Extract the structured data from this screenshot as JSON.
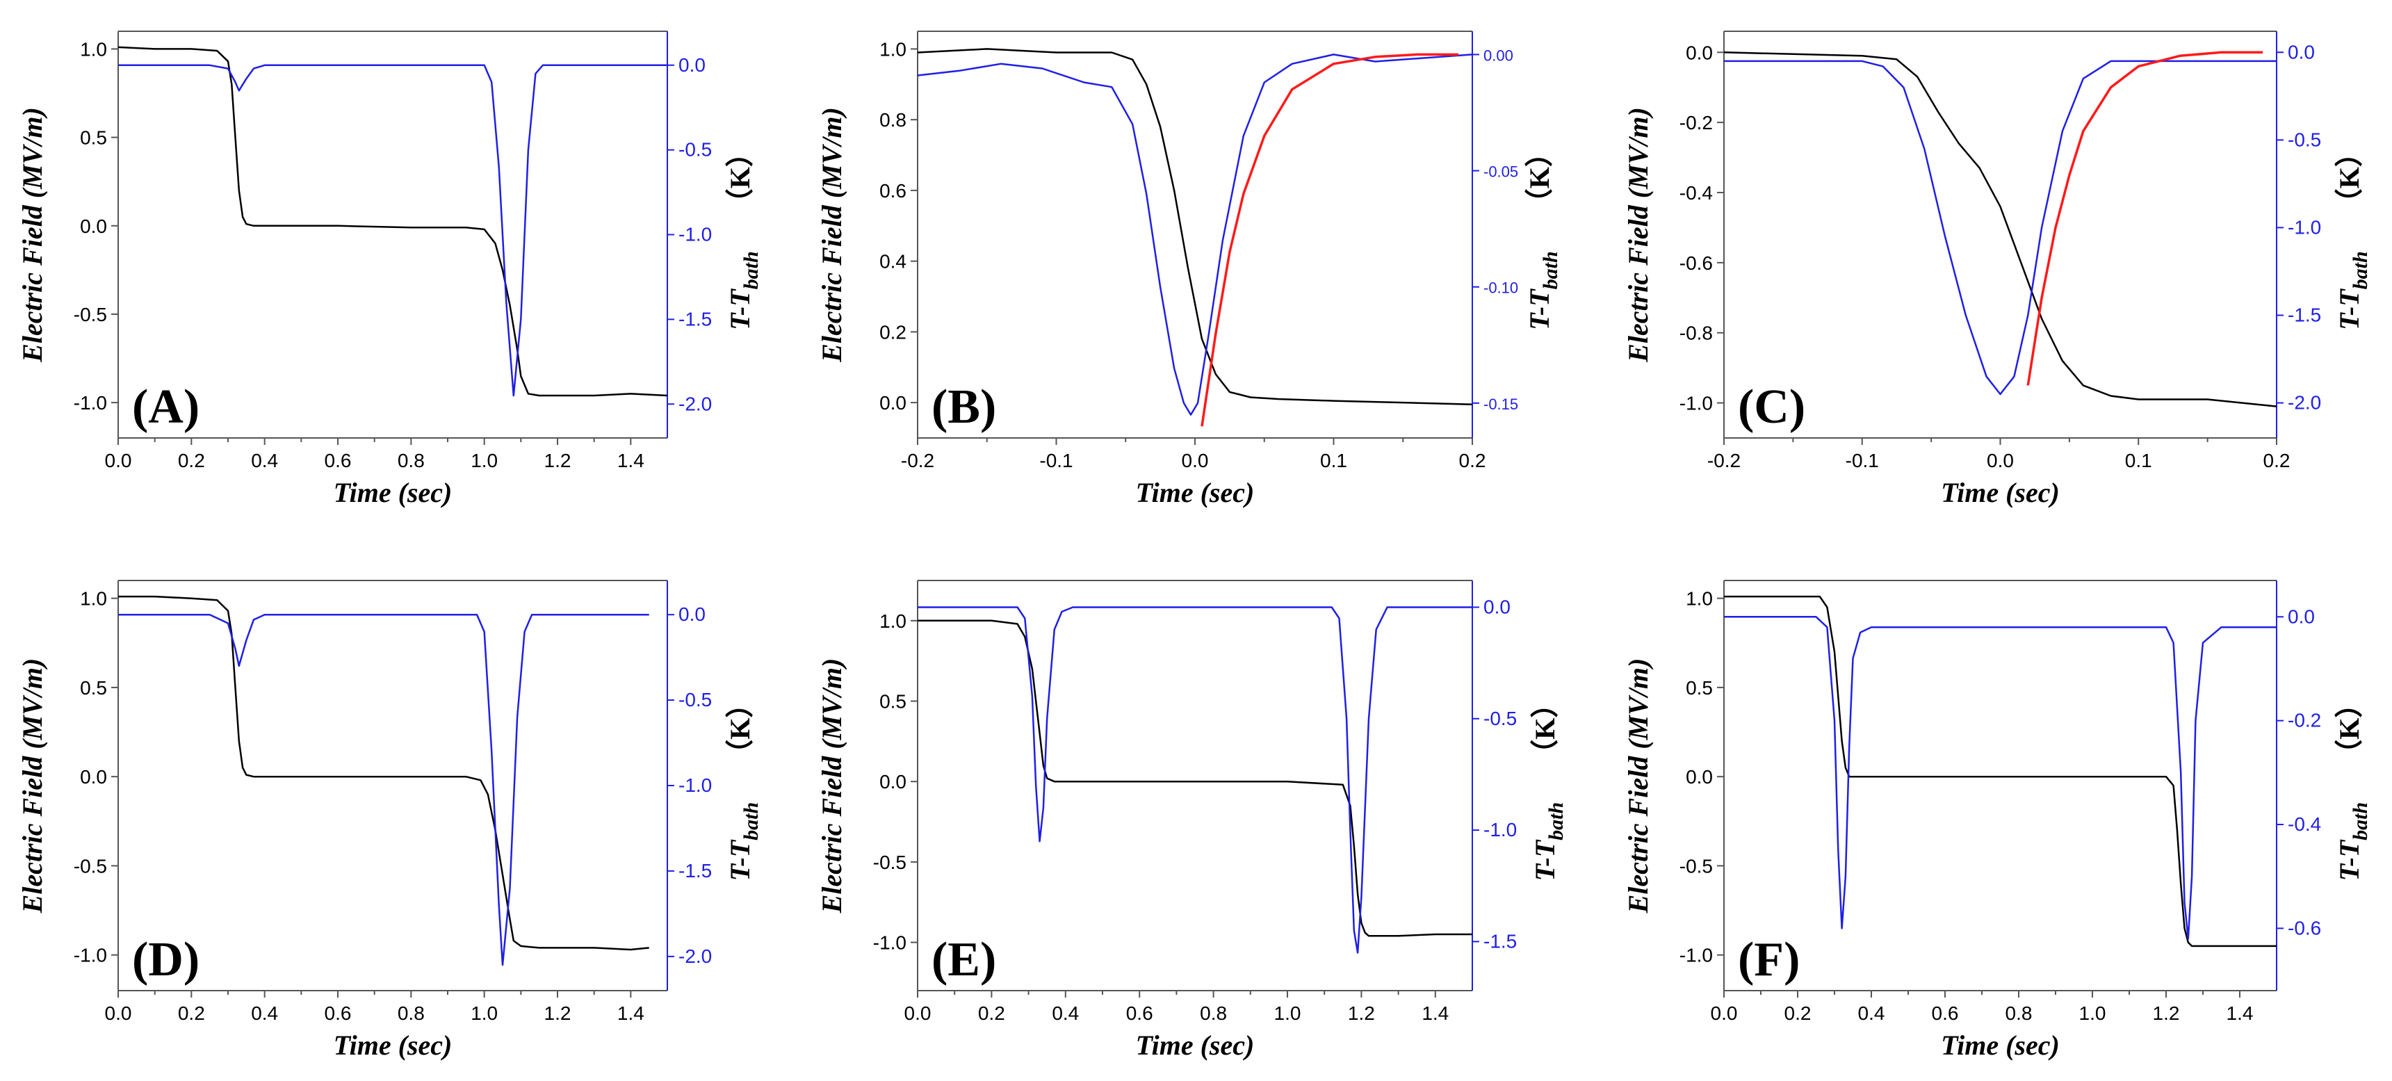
{
  "colors": {
    "field": "#000000",
    "temperature": "#1f1fe6",
    "fit": "#ff1a1a",
    "frame": "#555555",
    "right_axis": "#1f1fe6"
  },
  "chart_data": [
    {
      "type": "line",
      "panel_label": "(A)",
      "xlabel": "Time (sec)",
      "ylabel": "Electric Field (MV/m)",
      "y2label": {
        "main": "T-T",
        "sub": "bath",
        "unit": "（K）"
      },
      "xlim": [
        0,
        1.5
      ],
      "ylim": [
        -1.2,
        1.1
      ],
      "y2lim": [
        -2.2,
        0.2
      ],
      "xticks": [
        0,
        0.2,
        0.4,
        0.6,
        0.8,
        1.0,
        1.2,
        1.4
      ],
      "xtick_labels": [
        "0.0",
        "0.2",
        "0.4",
        "0.6",
        "0.8",
        "1.0",
        "1.2",
        "1.4"
      ],
      "yticks": [
        1.0,
        0.5,
        0.0,
        -0.5,
        -1.0
      ],
      "ytick_labels": [
        "1.0",
        "0.5",
        "0.0",
        "-0.5",
        "-1.0"
      ],
      "y2ticks": [
        0.0,
        -0.5,
        -1.0,
        -1.5,
        -2.0
      ],
      "y2tick_labels": [
        "0.0",
        "-0.5",
        "-1.0",
        "-1.5",
        "-2.0"
      ],
      "series": [
        {
          "name": "Electric Field",
          "axis": "left",
          "color": "#000000",
          "x": [
            0,
            0.1,
            0.2,
            0.27,
            0.3,
            0.31,
            0.32,
            0.33,
            0.34,
            0.35,
            0.37,
            0.4,
            0.6,
            0.8,
            0.95,
            1.0,
            1.03,
            1.05,
            1.07,
            1.09,
            1.1,
            1.12,
            1.15,
            1.2,
            1.3,
            1.4,
            1.5
          ],
          "y": [
            1.01,
            1.0,
            1.0,
            0.99,
            0.93,
            0.8,
            0.5,
            0.2,
            0.05,
            0.01,
            0.0,
            0.0,
            0.0,
            -0.01,
            -0.01,
            -0.02,
            -0.1,
            -0.25,
            -0.45,
            -0.7,
            -0.85,
            -0.95,
            -0.96,
            -0.96,
            -0.96,
            -0.95,
            -0.96
          ]
        },
        {
          "name": "T-Tbath",
          "axis": "right",
          "color": "#1f1fe6",
          "x": [
            0,
            0.25,
            0.3,
            0.32,
            0.33,
            0.35,
            0.37,
            0.4,
            1.0,
            1.02,
            1.04,
            1.06,
            1.08,
            1.1,
            1.12,
            1.14,
            1.16,
            1.5
          ],
          "y": [
            0.0,
            0.0,
            -0.02,
            -0.1,
            -0.15,
            -0.08,
            -0.02,
            0.0,
            0.0,
            -0.1,
            -0.6,
            -1.4,
            -1.95,
            -1.5,
            -0.5,
            -0.05,
            0.0,
            0.0
          ]
        }
      ]
    },
    {
      "type": "line",
      "panel_label": "(B)",
      "xlabel": "Time (sec)",
      "ylabel": "Electric Field (MV/m)",
      "y2label": {
        "main": "T-T",
        "sub": "bath",
        "unit": "（K）"
      },
      "xlim": [
        -0.2,
        0.2
      ],
      "ylim": [
        -0.1,
        1.05
      ],
      "y2lim": [
        -0.165,
        0.01
      ],
      "xticks": [
        -0.2,
        -0.1,
        0.0,
        0.1,
        0.2
      ],
      "xtick_labels": [
        "-0.2",
        "-0.1",
        "0.0",
        "0.1",
        "0.2"
      ],
      "yticks": [
        1.0,
        0.8,
        0.6,
        0.4,
        0.2,
        0.0
      ],
      "ytick_labels": [
        "1.0",
        "0.8",
        "0.6",
        "0.4",
        "0.2",
        "0.0"
      ],
      "y2ticks": [
        0.0,
        -0.05,
        -0.1,
        -0.15
      ],
      "y2tick_labels": [
        "0.00",
        "-0.05",
        "-0.10",
        "-0.15"
      ],
      "series": [
        {
          "name": "Electric Field",
          "axis": "left",
          "color": "#000000",
          "x": [
            -0.2,
            -0.15,
            -0.1,
            -0.06,
            -0.045,
            -0.035,
            -0.025,
            -0.015,
            -0.005,
            0.005,
            0.015,
            0.025,
            0.04,
            0.06,
            0.1,
            0.15,
            0.2
          ],
          "y": [
            0.99,
            1.0,
            0.99,
            0.99,
            0.97,
            0.9,
            0.78,
            0.6,
            0.38,
            0.18,
            0.08,
            0.03,
            0.015,
            0.01,
            0.005,
            0.0,
            -0.005
          ]
        },
        {
          "name": "T-Tbath",
          "axis": "right",
          "color": "#1f1fe6",
          "x": [
            -0.2,
            -0.17,
            -0.14,
            -0.11,
            -0.08,
            -0.06,
            -0.045,
            -0.035,
            -0.025,
            -0.015,
            -0.008,
            -0.003,
            0.002,
            0.01,
            0.02,
            0.035,
            0.05,
            0.07,
            0.1,
            0.13,
            0.2
          ],
          "y": [
            -0.009,
            -0.007,
            -0.004,
            -0.006,
            -0.012,
            -0.014,
            -0.03,
            -0.06,
            -0.1,
            -0.135,
            -0.15,
            -0.155,
            -0.15,
            -0.12,
            -0.08,
            -0.035,
            -0.012,
            -0.004,
            0.0,
            -0.003,
            0.0
          ]
        },
        {
          "name": "Fit",
          "axis": "right",
          "color": "#ff1a1a",
          "x": [
            0.005,
            0.015,
            0.025,
            0.035,
            0.05,
            0.07,
            0.1,
            0.13,
            0.16,
            0.19
          ],
          "y": [
            -0.16,
            -0.12,
            -0.085,
            -0.06,
            -0.035,
            -0.015,
            -0.004,
            -0.001,
            0.0,
            0.0
          ]
        }
      ]
    },
    {
      "type": "line",
      "panel_label": "(C)",
      "xlabel": "Time (sec)",
      "ylabel": "Electric Field (MV/m)",
      "y2label": {
        "main": "T-T",
        "sub": "bath",
        "unit": "（K）"
      },
      "xlim": [
        -0.2,
        0.2
      ],
      "ylim": [
        -1.1,
        0.06
      ],
      "y2lim": [
        -2.2,
        0.12
      ],
      "xticks": [
        -0.2,
        -0.1,
        0.0,
        0.1,
        0.2
      ],
      "xtick_labels": [
        "-0.2",
        "-0.1",
        "0.0",
        "0.1",
        "0.2"
      ],
      "yticks": [
        0.0,
        -0.2,
        -0.4,
        -0.6,
        -0.8,
        -1.0
      ],
      "ytick_labels": [
        "0.0",
        "-0.2",
        "-0.4",
        "-0.6",
        "-0.8",
        "-1.0"
      ],
      "y2ticks": [
        0.0,
        -0.5,
        -1.0,
        -1.5,
        -2.0
      ],
      "y2tick_labels": [
        "0.0",
        "-0.5",
        "-1.0",
        "-1.5",
        "-2.0"
      ],
      "series": [
        {
          "name": "Electric Field",
          "axis": "left",
          "color": "#000000",
          "x": [
            -0.2,
            -0.1,
            -0.075,
            -0.06,
            -0.045,
            -0.03,
            -0.015,
            0.0,
            0.015,
            0.03,
            0.045,
            0.06,
            0.08,
            0.1,
            0.15,
            0.2
          ],
          "y": [
            0.0,
            -0.01,
            -0.02,
            -0.07,
            -0.17,
            -0.26,
            -0.33,
            -0.44,
            -0.6,
            -0.76,
            -0.88,
            -0.95,
            -0.98,
            -0.99,
            -0.99,
            -1.01
          ]
        },
        {
          "name": "T-Tbath",
          "axis": "right",
          "color": "#1f1fe6",
          "x": [
            -0.2,
            -0.1,
            -0.085,
            -0.07,
            -0.055,
            -0.04,
            -0.025,
            -0.01,
            0.0,
            0.01,
            0.02,
            0.03,
            0.045,
            0.06,
            0.08,
            0.1,
            0.2
          ],
          "y": [
            -0.05,
            -0.05,
            -0.08,
            -0.2,
            -0.55,
            -1.05,
            -1.5,
            -1.85,
            -1.95,
            -1.85,
            -1.5,
            -1.0,
            -0.45,
            -0.15,
            -0.05,
            -0.05,
            -0.05
          ]
        },
        {
          "name": "Fit",
          "axis": "right",
          "color": "#ff1a1a",
          "x": [
            0.02,
            0.03,
            0.04,
            0.05,
            0.06,
            0.08,
            0.1,
            0.13,
            0.16,
            0.19
          ],
          "y": [
            -1.9,
            -1.4,
            -1.0,
            -0.7,
            -0.45,
            -0.2,
            -0.08,
            -0.02,
            0.0,
            0.0
          ]
        }
      ]
    },
    {
      "type": "line",
      "panel_label": "(D)",
      "xlabel": "Time (sec)",
      "ylabel": "Electric Field (MV/m)",
      "y2label": {
        "main": "T-T",
        "sub": "bath",
        "unit": "（K）"
      },
      "xlim": [
        0,
        1.5
      ],
      "ylim": [
        -1.2,
        1.1
      ],
      "y2lim": [
        -2.2,
        0.2
      ],
      "xticks": [
        0,
        0.2,
        0.4,
        0.6,
        0.8,
        1.0,
        1.2,
        1.4
      ],
      "xtick_labels": [
        "0.0",
        "0.2",
        "0.4",
        "0.6",
        "0.8",
        "1.0",
        "1.2",
        "1.4"
      ],
      "yticks": [
        1.0,
        0.5,
        0.0,
        -0.5,
        -1.0
      ],
      "ytick_labels": [
        "1.0",
        "0.5",
        "0.0",
        "-0.5",
        "-1.0"
      ],
      "y2ticks": [
        0.0,
        -0.5,
        -1.0,
        -1.5,
        -2.0
      ],
      "y2tick_labels": [
        "0.0",
        "-0.5",
        "-1.0",
        "-1.5",
        "-2.0"
      ],
      "series": [
        {
          "name": "Electric Field",
          "axis": "left",
          "color": "#000000",
          "x": [
            0,
            0.1,
            0.2,
            0.27,
            0.3,
            0.31,
            0.32,
            0.33,
            0.34,
            0.35,
            0.37,
            0.4,
            0.6,
            0.8,
            0.95,
            0.99,
            1.01,
            1.03,
            1.05,
            1.07,
            1.08,
            1.1,
            1.15,
            1.2,
            1.3,
            1.4,
            1.45
          ],
          "y": [
            1.01,
            1.01,
            1.0,
            0.99,
            0.93,
            0.8,
            0.5,
            0.2,
            0.05,
            0.01,
            0.0,
            0.0,
            0.0,
            0.0,
            0.0,
            -0.02,
            -0.1,
            -0.3,
            -0.55,
            -0.8,
            -0.92,
            -0.95,
            -0.96,
            -0.96,
            -0.96,
            -0.97,
            -0.96
          ]
        },
        {
          "name": "T-Tbath",
          "axis": "right",
          "color": "#1f1fe6",
          "x": [
            0,
            0.25,
            0.3,
            0.32,
            0.33,
            0.35,
            0.37,
            0.4,
            0.98,
            1.0,
            1.02,
            1.04,
            1.05,
            1.07,
            1.09,
            1.11,
            1.13,
            1.45
          ],
          "y": [
            0.0,
            0.0,
            -0.05,
            -0.2,
            -0.3,
            -0.15,
            -0.03,
            0.0,
            0.0,
            -0.1,
            -0.8,
            -1.7,
            -2.05,
            -1.6,
            -0.6,
            -0.1,
            0.0,
            0.0
          ]
        }
      ]
    },
    {
      "type": "line",
      "panel_label": "(E)",
      "xlabel": "Time (sec)",
      "ylabel": "Electric Field (MV/m)",
      "y2label": {
        "main": "T-T",
        "sub": "bath",
        "unit": "（K）"
      },
      "xlim": [
        0,
        1.5
      ],
      "ylim": [
        -1.3,
        1.25
      ],
      "y2lim": [
        -1.72,
        0.12
      ],
      "xticks": [
        0,
        0.2,
        0.4,
        0.6,
        0.8,
        1.0,
        1.2,
        1.4
      ],
      "xtick_labels": [
        "0.0",
        "0.2",
        "0.4",
        "0.6",
        "0.8",
        "1.0",
        "1.2",
        "1.4"
      ],
      "yticks": [
        1.0,
        0.5,
        0.0,
        -0.5,
        -1.0
      ],
      "ytick_labels": [
        "1.0",
        "0.5",
        "0.0",
        "-0.5",
        "-1.0"
      ],
      "y2ticks": [
        0.0,
        -0.5,
        -1.0,
        -1.5
      ],
      "y2tick_labels": [
        "0.0",
        "-0.5",
        "-1.0",
        "-1.5"
      ],
      "series": [
        {
          "name": "Electric Field",
          "axis": "left",
          "color": "#000000",
          "x": [
            0,
            0.2,
            0.27,
            0.29,
            0.31,
            0.32,
            0.33,
            0.34,
            0.35,
            0.37,
            0.4,
            0.6,
            0.8,
            1.0,
            1.15,
            1.17,
            1.18,
            1.19,
            1.2,
            1.21,
            1.22,
            1.24,
            1.3,
            1.4,
            1.5
          ],
          "y": [
            1.0,
            1.0,
            0.98,
            0.9,
            0.7,
            0.5,
            0.3,
            0.1,
            0.02,
            0.0,
            0.0,
            0.0,
            0.0,
            0.0,
            -0.02,
            -0.15,
            -0.4,
            -0.7,
            -0.88,
            -0.94,
            -0.96,
            -0.96,
            -0.96,
            -0.95,
            -0.95
          ]
        },
        {
          "name": "T-Tbath",
          "axis": "right",
          "color": "#1f1fe6",
          "x": [
            0,
            0.27,
            0.29,
            0.31,
            0.32,
            0.33,
            0.34,
            0.35,
            0.37,
            0.39,
            0.42,
            1.12,
            1.14,
            1.16,
            1.17,
            1.18,
            1.19,
            1.2,
            1.22,
            1.24,
            1.27,
            1.5
          ],
          "y": [
            0.0,
            0.0,
            -0.05,
            -0.4,
            -0.8,
            -1.05,
            -0.9,
            -0.5,
            -0.1,
            -0.02,
            0.0,
            0.0,
            -0.05,
            -0.5,
            -1.0,
            -1.45,
            -1.55,
            -1.3,
            -0.5,
            -0.1,
            0.0,
            0.0
          ]
        }
      ]
    },
    {
      "type": "line",
      "panel_label": "(F)",
      "xlabel": "Time (sec)",
      "ylabel": "Electric Field (MV/m)",
      "y2label": {
        "main": "T-T",
        "sub": "bath",
        "unit": "（K）"
      },
      "xlim": [
        0,
        1.5
      ],
      "ylim": [
        -1.2,
        1.1
      ],
      "y2lim": [
        -0.72,
        0.07
      ],
      "xticks": [
        0,
        0.2,
        0.4,
        0.6,
        0.8,
        1.0,
        1.2,
        1.4
      ],
      "xtick_labels": [
        "0.0",
        "0.2",
        "0.4",
        "0.6",
        "0.8",
        "1.0",
        "1.2",
        "1.4"
      ],
      "yticks": [
        1.0,
        0.5,
        0.0,
        -0.5,
        -1.0
      ],
      "ytick_labels": [
        "1.0",
        "0.5",
        "0.0",
        "-0.5",
        "-1.0"
      ],
      "y2ticks": [
        0.0,
        -0.2,
        -0.4,
        -0.6
      ],
      "y2tick_labels": [
        "0.0",
        "-0.2",
        "-0.4",
        "-0.6"
      ],
      "series": [
        {
          "name": "Electric Field",
          "axis": "left",
          "color": "#000000",
          "x": [
            0,
            0.1,
            0.2,
            0.26,
            0.28,
            0.3,
            0.31,
            0.32,
            0.33,
            0.34,
            0.36,
            0.4,
            0.6,
            0.8,
            1.0,
            1.2,
            1.22,
            1.23,
            1.24,
            1.25,
            1.26,
            1.27,
            1.28,
            1.3,
            1.4,
            1.5
          ],
          "y": [
            1.01,
            1.01,
            1.01,
            1.01,
            0.95,
            0.7,
            0.45,
            0.2,
            0.05,
            0.0,
            0.0,
            0.0,
            0.0,
            0.0,
            0.0,
            0.0,
            -0.05,
            -0.3,
            -0.6,
            -0.85,
            -0.93,
            -0.95,
            -0.95,
            -0.95,
            -0.95,
            -0.95
          ]
        },
        {
          "name": "T-Tbath",
          "axis": "right",
          "color": "#1f1fe6",
          "x": [
            0,
            0.25,
            0.28,
            0.3,
            0.31,
            0.32,
            0.33,
            0.34,
            0.35,
            0.37,
            0.4,
            0.6,
            1.0,
            1.2,
            1.22,
            1.24,
            1.25,
            1.26,
            1.27,
            1.28,
            1.3,
            1.35,
            1.5
          ],
          "y": [
            0.0,
            0.0,
            -0.02,
            -0.2,
            -0.45,
            -0.6,
            -0.5,
            -0.25,
            -0.08,
            -0.03,
            -0.02,
            -0.02,
            -0.02,
            -0.02,
            -0.05,
            -0.3,
            -0.55,
            -0.62,
            -0.5,
            -0.2,
            -0.05,
            -0.02,
            -0.02
          ]
        }
      ]
    }
  ]
}
